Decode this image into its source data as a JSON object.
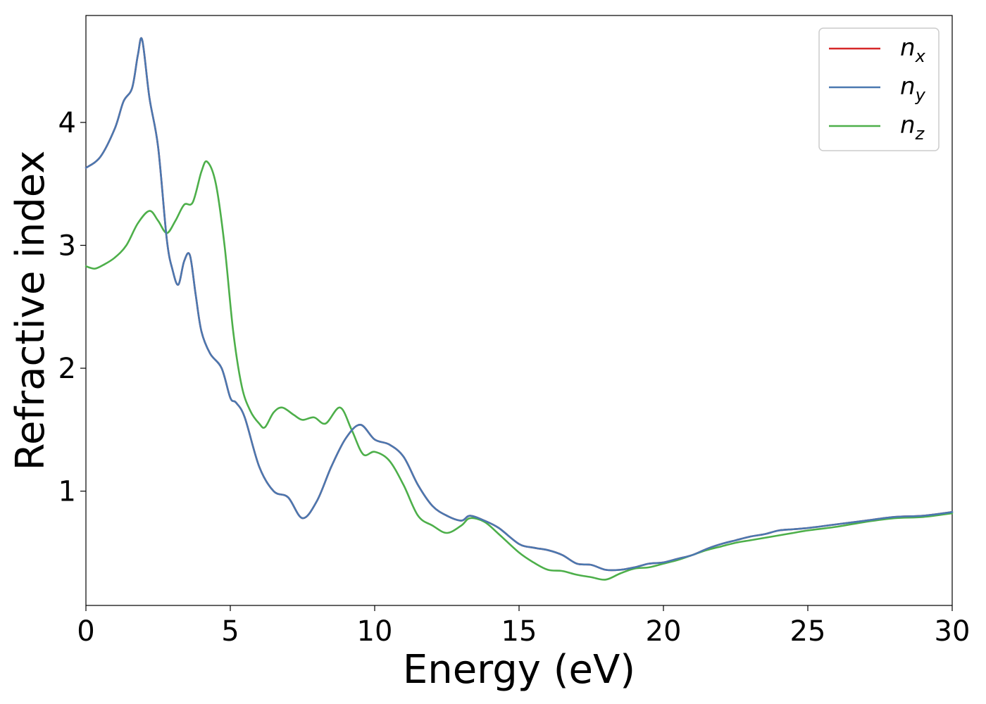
{
  "chart_data": {
    "type": "line",
    "title": "",
    "xlabel": "Energy (eV)",
    "ylabel": "Refractive index",
    "xlim": [
      0,
      30
    ],
    "ylim": [
      0.07,
      4.87
    ],
    "xticks": [
      "0",
      "5",
      "10",
      "15",
      "20",
      "25",
      "30"
    ],
    "xtick_values": [
      0,
      5,
      10,
      15,
      20,
      25,
      30
    ],
    "yticks": [
      "1",
      "2",
      "3",
      "4"
    ],
    "ytick_values": [
      1,
      2,
      3,
      4
    ],
    "grid": false,
    "legend_position": "top-right",
    "colors": {
      "nx": "#d62728",
      "ny": "#4a78b0",
      "nz": "#4daf4a"
    },
    "series": [
      {
        "key": "nx",
        "name_base": "n",
        "name_sub": "x",
        "color": "#d62728",
        "x": [
          0,
          0.5,
          1,
          1.3,
          1.6,
          1.8,
          1.95,
          2.2,
          2.5,
          2.8,
          3.0,
          3.2,
          3.4,
          3.6,
          3.8,
          4.0,
          4.3,
          4.7,
          5.0,
          5.2,
          5.5,
          6.0,
          6.5,
          7.0,
          7.5,
          8.0,
          8.5,
          9.0,
          9.5,
          10.0,
          10.5,
          11.0,
          11.5,
          12.0,
          12.5,
          13.0,
          13.3,
          13.8,
          14.3,
          15.0,
          15.5,
          16.0,
          16.5,
          17.0,
          17.5,
          18.0,
          18.5,
          19.0,
          19.5,
          20.0,
          20.5,
          21.0,
          21.5,
          22.0,
          22.5,
          23.0,
          23.5,
          24.0,
          24.5,
          25.0,
          26.0,
          27.0,
          28.0,
          29.0,
          30.0
        ],
        "y": [
          3.63,
          3.72,
          3.95,
          4.17,
          4.28,
          4.55,
          4.67,
          4.2,
          3.8,
          3.05,
          2.8,
          2.68,
          2.87,
          2.92,
          2.6,
          2.3,
          2.12,
          2.0,
          1.76,
          1.72,
          1.6,
          1.2,
          1.0,
          0.95,
          0.78,
          0.92,
          1.2,
          1.43,
          1.54,
          1.42,
          1.38,
          1.28,
          1.05,
          0.88,
          0.8,
          0.76,
          0.8,
          0.76,
          0.7,
          0.57,
          0.54,
          0.52,
          0.48,
          0.41,
          0.4,
          0.36,
          0.36,
          0.38,
          0.41,
          0.42,
          0.45,
          0.48,
          0.53,
          0.57,
          0.6,
          0.63,
          0.65,
          0.68,
          0.69,
          0.7,
          0.73,
          0.76,
          0.79,
          0.8,
          0.83
        ]
      },
      {
        "key": "ny",
        "name_base": "n",
        "name_sub": "y",
        "color": "#4a78b0",
        "x": [
          0,
          0.5,
          1,
          1.3,
          1.6,
          1.8,
          1.95,
          2.2,
          2.5,
          2.8,
          3.0,
          3.2,
          3.4,
          3.6,
          3.8,
          4.0,
          4.3,
          4.7,
          5.0,
          5.2,
          5.5,
          6.0,
          6.5,
          7.0,
          7.5,
          8.0,
          8.5,
          9.0,
          9.5,
          10.0,
          10.5,
          11.0,
          11.5,
          12.0,
          12.5,
          13.0,
          13.3,
          13.8,
          14.3,
          15.0,
          15.5,
          16.0,
          16.5,
          17.0,
          17.5,
          18.0,
          18.5,
          19.0,
          19.5,
          20.0,
          20.5,
          21.0,
          21.5,
          22.0,
          22.5,
          23.0,
          23.5,
          24.0,
          24.5,
          25.0,
          26.0,
          27.0,
          28.0,
          29.0,
          30.0
        ],
        "y": [
          3.63,
          3.72,
          3.95,
          4.17,
          4.28,
          4.55,
          4.67,
          4.2,
          3.8,
          3.05,
          2.8,
          2.68,
          2.87,
          2.92,
          2.6,
          2.3,
          2.12,
          2.0,
          1.76,
          1.72,
          1.6,
          1.2,
          1.0,
          0.95,
          0.78,
          0.92,
          1.2,
          1.43,
          1.54,
          1.42,
          1.38,
          1.28,
          1.05,
          0.88,
          0.8,
          0.76,
          0.8,
          0.76,
          0.7,
          0.57,
          0.54,
          0.52,
          0.48,
          0.41,
          0.4,
          0.36,
          0.36,
          0.38,
          0.41,
          0.42,
          0.45,
          0.48,
          0.53,
          0.57,
          0.6,
          0.63,
          0.65,
          0.68,
          0.69,
          0.7,
          0.73,
          0.76,
          0.79,
          0.8,
          0.83
        ]
      },
      {
        "key": "nz",
        "name_base": "n",
        "name_sub": "z",
        "color": "#4daf4a",
        "x": [
          0,
          0.3,
          0.6,
          1.0,
          1.4,
          1.8,
          2.2,
          2.5,
          2.8,
          3.1,
          3.4,
          3.7,
          4.0,
          4.2,
          4.5,
          4.8,
          5.1,
          5.4,
          5.7,
          6.0,
          6.2,
          6.5,
          6.8,
          7.2,
          7.5,
          7.9,
          8.3,
          8.8,
          9.2,
          9.6,
          10.0,
          10.5,
          11.0,
          11.5,
          12.0,
          12.5,
          13.0,
          13.3,
          13.8,
          14.3,
          15.0,
          15.5,
          16.0,
          16.5,
          17.0,
          17.5,
          18.0,
          18.5,
          19.0,
          19.5,
          20.0,
          20.5,
          21.0,
          21.5,
          22.0,
          22.5,
          23.0,
          23.5,
          24.0,
          24.5,
          25.0,
          26.0,
          27.0,
          28.0,
          29.0,
          30.0
        ],
        "y": [
          2.83,
          2.81,
          2.84,
          2.9,
          3.0,
          3.18,
          3.28,
          3.2,
          3.1,
          3.2,
          3.33,
          3.35,
          3.6,
          3.68,
          3.5,
          3.0,
          2.3,
          1.85,
          1.65,
          1.55,
          1.52,
          1.64,
          1.68,
          1.62,
          1.58,
          1.6,
          1.55,
          1.68,
          1.5,
          1.3,
          1.32,
          1.25,
          1.05,
          0.8,
          0.72,
          0.66,
          0.72,
          0.78,
          0.75,
          0.65,
          0.5,
          0.42,
          0.36,
          0.35,
          0.32,
          0.3,
          0.28,
          0.33,
          0.37,
          0.38,
          0.41,
          0.44,
          0.48,
          0.52,
          0.55,
          0.58,
          0.6,
          0.62,
          0.64,
          0.66,
          0.68,
          0.71,
          0.75,
          0.78,
          0.79,
          0.82
        ]
      }
    ]
  }
}
